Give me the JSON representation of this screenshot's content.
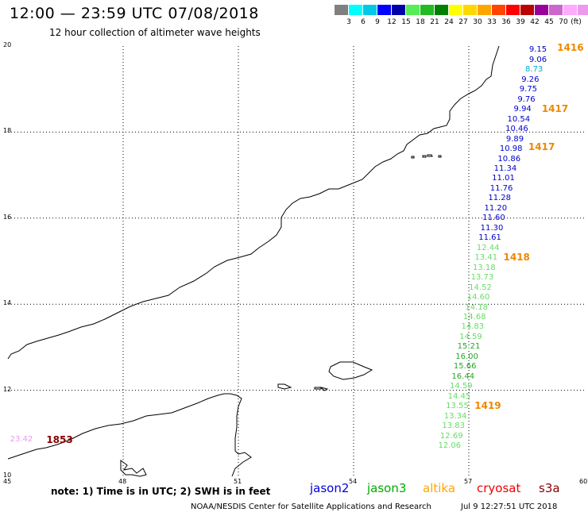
{
  "header": {
    "title": "12:00 — 23:59 UTC 07/08/2018",
    "subtitle": "12 hour collection of altimeter wave heights"
  },
  "colorbar": {
    "colors": [
      "#808080",
      "#00ffff",
      "#00c8e6",
      "#0000ff",
      "#0000aa",
      "#55ee55",
      "#22bb22",
      "#008000",
      "#ffff00",
      "#ffd700",
      "#ffa500",
      "#ff4500",
      "#ff0000",
      "#bb0000",
      "#990099",
      "#cc66cc",
      "#ffaaff",
      "#ee99ee",
      "#000000"
    ],
    "labels": [
      "3",
      "6",
      "9",
      "12",
      "15",
      "18",
      "21",
      "24",
      "27",
      "30",
      "33",
      "36",
      "39",
      "42",
      "45",
      "70"
    ],
    "unit": "(ft)"
  },
  "axes": {
    "x_ticks": [
      "45",
      "48",
      "51",
      "54",
      "57",
      "60"
    ],
    "y_ticks": [
      "20",
      "18",
      "16",
      "14",
      "12",
      "10"
    ]
  },
  "swh_points": [
    {
      "lat": 19.9,
      "lon": 58.8,
      "v": "9.15",
      "c": "#0000cc"
    },
    {
      "lat": 19.67,
      "lon": 58.8,
      "v": "9.06",
      "c": "#0000cc"
    },
    {
      "lat": 19.44,
      "lon": 58.7,
      "v": "8.73",
      "c": "#00aacc"
    },
    {
      "lat": 19.21,
      "lon": 58.6,
      "v": "9.26",
      "c": "#0000cc"
    },
    {
      "lat": 18.98,
      "lon": 58.55,
      "v": "9.75",
      "c": "#0000cc"
    },
    {
      "lat": 18.75,
      "lon": 58.5,
      "v": "9.76",
      "c": "#0000cc"
    },
    {
      "lat": 18.52,
      "lon": 58.4,
      "v": "9.94",
      "c": "#0000cc"
    },
    {
      "lat": 18.29,
      "lon": 58.3,
      "v": "10.54",
      "c": "#0000cc"
    },
    {
      "lat": 18.06,
      "lon": 58.25,
      "v": "10.46",
      "c": "#0000cc"
    },
    {
      "lat": 17.83,
      "lon": 58.2,
      "v": "9.89",
      "c": "#0000cc"
    },
    {
      "lat": 17.6,
      "lon": 58.1,
      "v": "10.98",
      "c": "#0000cc"
    },
    {
      "lat": 17.37,
      "lon": 58.05,
      "v": "10.86",
      "c": "#0000cc"
    },
    {
      "lat": 17.14,
      "lon": 57.95,
      "v": "11.34",
      "c": "#0000cc"
    },
    {
      "lat": 16.91,
      "lon": 57.9,
      "v": "11.01",
      "c": "#0000cc"
    },
    {
      "lat": 16.68,
      "lon": 57.85,
      "v": "11.76",
      "c": "#0000cc"
    },
    {
      "lat": 16.45,
      "lon": 57.8,
      "v": "11.28",
      "c": "#0000cc"
    },
    {
      "lat": 16.22,
      "lon": 57.7,
      "v": "11.20",
      "c": "#0000cc"
    },
    {
      "lat": 15.99,
      "lon": 57.65,
      "v": "11.60",
      "c": "#0000cc"
    },
    {
      "lat": 15.76,
      "lon": 57.6,
      "v": "11.30",
      "c": "#0000cc"
    },
    {
      "lat": 15.53,
      "lon": 57.55,
      "v": "11.61",
      "c": "#0000cc"
    },
    {
      "lat": 15.3,
      "lon": 57.5,
      "v": "12.44",
      "c": "#66dd66"
    },
    {
      "lat": 15.07,
      "lon": 57.45,
      "v": "13.41",
      "c": "#66dd66"
    },
    {
      "lat": 14.84,
      "lon": 57.4,
      "v": "13.18",
      "c": "#66dd66"
    },
    {
      "lat": 14.61,
      "lon": 57.35,
      "v": "13.73",
      "c": "#66dd66"
    },
    {
      "lat": 14.38,
      "lon": 57.3,
      "v": "14.52",
      "c": "#66dd66"
    },
    {
      "lat": 14.15,
      "lon": 57.25,
      "v": "14.60",
      "c": "#66dd66"
    },
    {
      "lat": 13.92,
      "lon": 57.2,
      "v": "14.18",
      "c": "#66dd66"
    },
    {
      "lat": 13.69,
      "lon": 57.15,
      "v": "14.68",
      "c": "#66dd66"
    },
    {
      "lat": 13.46,
      "lon": 57.1,
      "v": "14.83",
      "c": "#66dd66"
    },
    {
      "lat": 13.23,
      "lon": 57.05,
      "v": "14.59",
      "c": "#66dd66"
    },
    {
      "lat": 13.0,
      "lon": 57.0,
      "v": "15.21",
      "c": "#22aa22"
    },
    {
      "lat": 12.77,
      "lon": 56.95,
      "v": "16.00",
      "c": "#22aa22"
    },
    {
      "lat": 12.54,
      "lon": 56.9,
      "v": "15.66",
      "c": "#22aa22"
    },
    {
      "lat": 12.31,
      "lon": 56.85,
      "v": "16.44",
      "c": "#22aa22"
    },
    {
      "lat": 12.08,
      "lon": 56.8,
      "v": "14.59",
      "c": "#66dd66"
    },
    {
      "lat": 11.85,
      "lon": 56.75,
      "v": "14.45",
      "c": "#66dd66"
    },
    {
      "lat": 11.62,
      "lon": 56.7,
      "v": "13.55",
      "c": "#66dd66"
    },
    {
      "lat": 11.39,
      "lon": 56.65,
      "v": "13.34",
      "c": "#66dd66"
    },
    {
      "lat": 11.16,
      "lon": 56.6,
      "v": "13.83",
      "c": "#66dd66"
    },
    {
      "lat": 10.93,
      "lon": 56.55,
      "v": "12.69",
      "c": "#66dd66"
    },
    {
      "lat": 10.7,
      "lon": 56.5,
      "v": "12.06",
      "c": "#66dd66"
    },
    {
      "lat": 10.85,
      "lon": 45.35,
      "v": "23.42",
      "c": "#ee99ee"
    }
  ],
  "time_labels": [
    {
      "lat": 19.97,
      "lon": 59.3,
      "v": "1416",
      "c": "#ee8800"
    },
    {
      "lat": 18.54,
      "lon": 58.9,
      "v": "1417",
      "c": "#ee8800"
    },
    {
      "lat": 17.65,
      "lon": 58.55,
      "v": "1417",
      "c": "#ee8800"
    },
    {
      "lat": 15.09,
      "lon": 57.9,
      "v": "1418",
      "c": "#ee8800"
    },
    {
      "lat": 11.64,
      "lon": 57.15,
      "v": "1419",
      "c": "#ee8800"
    },
    {
      "lat": 10.85,
      "lon": 46.0,
      "v": "1853",
      "c": "#880000"
    }
  ],
  "note": "note: 1) Time is in UTC; 2) SWH is in feet",
  "legend": [
    {
      "label": "jason2",
      "color": "#0000dd"
    },
    {
      "label": "jason3",
      "color": "#00aa00"
    },
    {
      "label": "altika",
      "color": "#ffa500"
    },
    {
      "label": "cryosat",
      "color": "#ee0000"
    },
    {
      "label": "s3a",
      "color": "#880000"
    }
  ],
  "footer": {
    "credit": "NOAA/NESDIS Center for Satellite Applications and Research",
    "timestamp": "Jul  9 12:27:51 UTC 2018"
  }
}
